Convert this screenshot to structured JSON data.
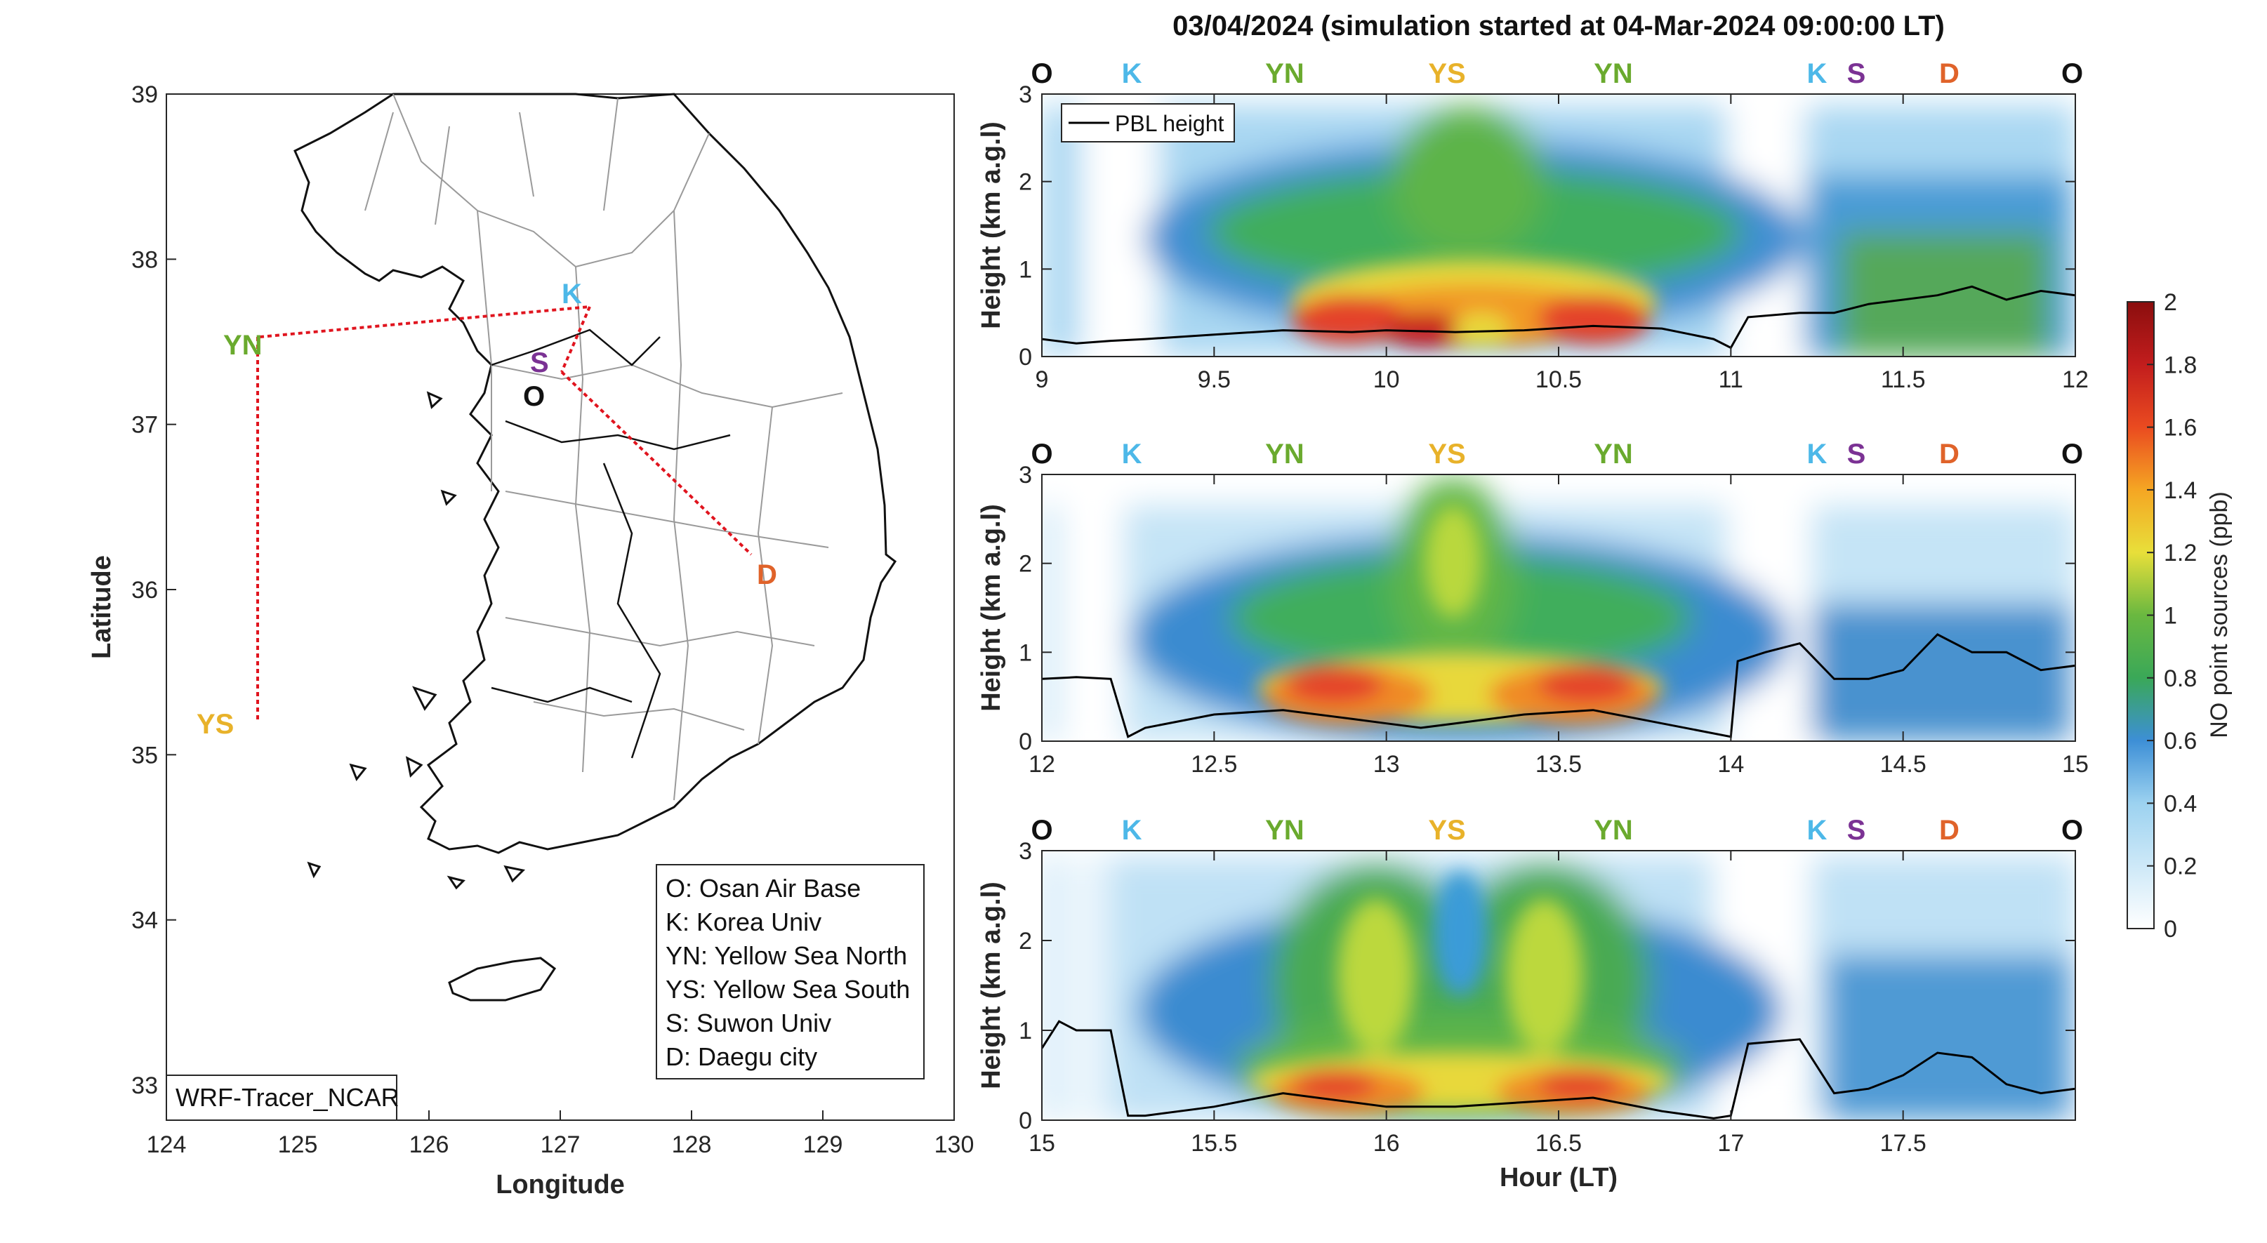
{
  "title": "03/04/2024 (simulation started at 04-Mar-2024 09:00:00 LT)",
  "colors": {
    "O": "#111111",
    "K": "#4db8e8",
    "YN": "#6aaa2e",
    "YS": "#e8b22a",
    "S": "#7b3294",
    "D": "#e0632a",
    "route": "#e0141e",
    "pbl": "#000000"
  },
  "map": {
    "xlabel": "Longitude",
    "ylabel": "Latitude",
    "xticks": [
      "124",
      "125",
      "126",
      "127",
      "128",
      "129",
      "130"
    ],
    "yticks": [
      "33",
      "34",
      "35",
      "36",
      "37",
      "38",
      "39"
    ],
    "stamp": "WRF-Tracer_NCAR",
    "legend": [
      "O: Osan Air Base",
      "K: Korea Univ",
      "YN: Yellow Sea North",
      "YS: Yellow Sea South",
      "S: Suwon Univ",
      "D: Daegu city"
    ],
    "sites": [
      {
        "label": "YN",
        "lon": 124.7,
        "lat": 37.43
      },
      {
        "label": "YS",
        "lon": 124.7,
        "lat": 35.02
      },
      {
        "label": "K",
        "lon": 127.25,
        "lat": 37.62
      },
      {
        "label": "S",
        "lon": 127.0,
        "lat": 37.28
      },
      {
        "label": "O",
        "lon": 127.05,
        "lat": 37.08
      },
      {
        "label": "D",
        "lon": 128.6,
        "lat": 35.87
      }
    ]
  },
  "colorbar": {
    "label": "NO point sources (ppb)",
    "ticks": [
      "0",
      "0.2",
      "0.4",
      "0.6",
      "0.8",
      "1",
      "1.2",
      "1.4",
      "1.6",
      "1.8",
      "2"
    ]
  },
  "chart_data": [
    {
      "type": "heatmap",
      "top_marks": [
        "O",
        "K",
        "YN",
        "YS",
        "YN",
        "K",
        "S",
        "D",
        "O"
      ],
      "xticks": [
        "9",
        "9.5",
        "10",
        "10.5",
        "11",
        "11.5",
        "12"
      ],
      "yticks": [
        "0",
        "1",
        "2",
        "3"
      ],
      "ylabel": "Height (km a.g.l)",
      "legend": "PBL height",
      "x_range": [
        9,
        12
      ],
      "y_range": [
        0,
        3
      ],
      "pbl_height": {
        "x": [
          9.0,
          9.1,
          9.2,
          9.3,
          9.5,
          9.7,
          9.9,
          10.0,
          10.2,
          10.4,
          10.6,
          10.8,
          10.95,
          11.0,
          11.05,
          11.2,
          11.3,
          11.4,
          11.5,
          11.6,
          11.7,
          11.8,
          11.9,
          12.0
        ],
        "y": [
          0.2,
          0.15,
          0.18,
          0.2,
          0.25,
          0.3,
          0.28,
          0.3,
          0.28,
          0.3,
          0.35,
          0.32,
          0.2,
          0.1,
          0.45,
          0.5,
          0.5,
          0.6,
          0.65,
          0.7,
          0.8,
          0.65,
          0.75,
          0.7
        ]
      }
    },
    {
      "type": "heatmap",
      "top_marks": [
        "O",
        "K",
        "YN",
        "YS",
        "YN",
        "K",
        "S",
        "D",
        "O"
      ],
      "xticks": [
        "12",
        "12.5",
        "13",
        "13.5",
        "14",
        "14.5",
        "15"
      ],
      "yticks": [
        "0",
        "1",
        "2",
        "3"
      ],
      "ylabel": "Height (km a.g.l)",
      "x_range": [
        12,
        15
      ],
      "y_range": [
        0,
        3
      ],
      "pbl_height": {
        "x": [
          12.0,
          12.1,
          12.2,
          12.25,
          12.3,
          12.5,
          12.7,
          12.9,
          13.0,
          13.1,
          13.2,
          13.4,
          13.6,
          13.8,
          14.0,
          14.02,
          14.1,
          14.2,
          14.3,
          14.4,
          14.5,
          14.6,
          14.7,
          14.8,
          14.9,
          15.0
        ],
        "y": [
          0.7,
          0.72,
          0.7,
          0.05,
          0.15,
          0.3,
          0.35,
          0.25,
          0.2,
          0.15,
          0.2,
          0.3,
          0.35,
          0.2,
          0.05,
          0.9,
          1.0,
          1.1,
          0.7,
          0.7,
          0.8,
          1.2,
          1.0,
          1.0,
          0.8,
          0.85
        ]
      }
    },
    {
      "type": "heatmap",
      "top_marks": [
        "O",
        "K",
        "YN",
        "YS",
        "YN",
        "K",
        "S",
        "D",
        "O"
      ],
      "xticks": [
        "15",
        "15.5",
        "16",
        "16.5",
        "17",
        "17.5"
      ],
      "yticks": [
        "0",
        "1",
        "2",
        "3"
      ],
      "ylabel": "Height (km a.g.l)",
      "xlabel": "Hour (LT)",
      "x_range": [
        15,
        18
      ],
      "y_range": [
        0,
        3
      ],
      "pbl_height": {
        "x": [
          15.0,
          15.05,
          15.1,
          15.2,
          15.25,
          15.3,
          15.5,
          15.7,
          15.9,
          16.0,
          16.2,
          16.4,
          16.6,
          16.8,
          16.95,
          17.0,
          17.05,
          17.2,
          17.3,
          17.4,
          17.5,
          17.6,
          17.7,
          17.8,
          17.9,
          18.0
        ],
        "y": [
          0.8,
          1.1,
          1.0,
          1.0,
          0.05,
          0.05,
          0.15,
          0.3,
          0.2,
          0.15,
          0.15,
          0.2,
          0.25,
          0.1,
          0.02,
          0.05,
          0.85,
          0.9,
          0.3,
          0.35,
          0.5,
          0.75,
          0.7,
          0.4,
          0.3,
          0.35
        ]
      }
    }
  ]
}
